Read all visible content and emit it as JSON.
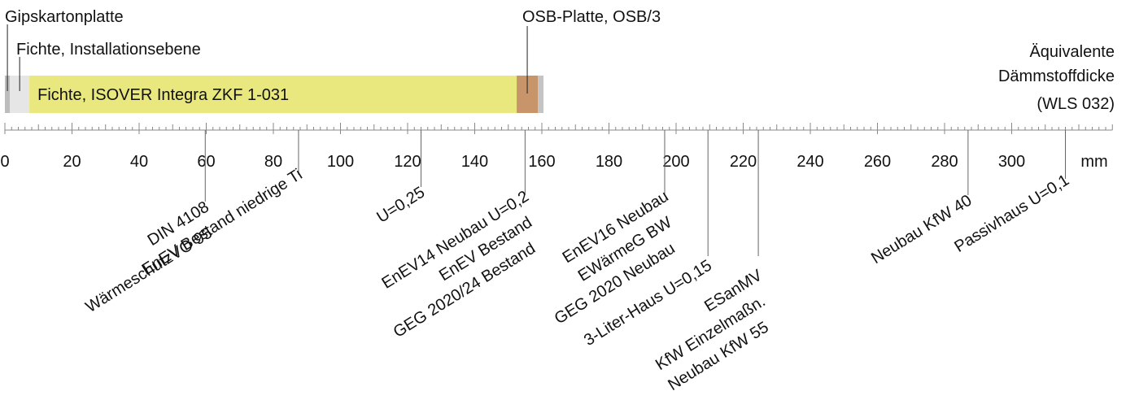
{
  "layers": [
    {
      "name": "Gipskartonplatte",
      "thickness": 1.5,
      "color": "#bdbdbd"
    },
    {
      "name": "Fichte, Installationsebene",
      "thickness": 5.8,
      "color": "#e6e6e6"
    },
    {
      "name": "Fichte, ISOVER Integra ZKF 1-031",
      "thickness": 145.2,
      "color": "#e8e87f"
    },
    {
      "name": "OSB-Platte, OSB/3",
      "thickness": 6.3,
      "color": "#c8956a"
    },
    {
      "name": null,
      "thickness": 1.7,
      "color": "#c4c4c4"
    }
  ],
  "caption": [
    "Äquivalente",
    "Dämmstoffdicke",
    "(WLS 032)"
  ],
  "scale": {
    "xlim": [
      0,
      330
    ],
    "xticks": [
      0,
      20,
      40,
      60,
      80,
      100,
      120,
      140,
      160,
      180,
      200,
      220,
      240,
      260,
      280,
      300
    ],
    "unit": "mm"
  },
  "markers": [
    {
      "value": 59.7,
      "labels": [
        "DIN 4108",
        "WärmeschutzVO 95"
      ]
    },
    {
      "value": 87.5,
      "labels": [
        "EnEV Bestand niedrige Ti"
      ]
    },
    {
      "value": 124,
      "labels": [
        "U=0,25"
      ]
    },
    {
      "value": 155,
      "labels": [
        "EnEV14 Neubau U=0,2",
        "EnEV Bestand",
        "GEG 2020/24 Bestand"
      ]
    },
    {
      "value": 196.6,
      "labels": [
        "EnEV16 Neubau",
        "EWärmeG BW",
        "GEG 2020 Neubau"
      ]
    },
    {
      "value": 209.5,
      "labels": [
        "3-Liter-Haus U=0,15"
      ]
    },
    {
      "value": 224.5,
      "labels": [
        "ESanMV",
        "KfW Einzelmaßn.",
        "Neubau KfW 55"
      ]
    },
    {
      "value": 287,
      "labels": [
        "Neubau KfW 40"
      ]
    },
    {
      "value": 316,
      "labels": [
        "Passivhaus U=0,1"
      ]
    }
  ]
}
